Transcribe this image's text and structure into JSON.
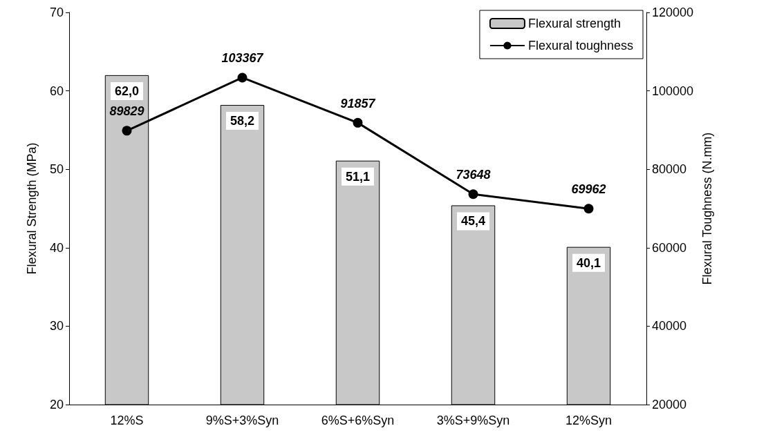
{
  "chart_data": {
    "type": "bar",
    "ylabel": "Flexural Strength (MPa)",
    "y2label": "Flexural Toughness (N.mm)",
    "categories": [
      "12%S",
      "9%S+3%Syn",
      "6%S+6%Syn",
      "3%S+9%Syn",
      "12%Syn"
    ],
    "series": [
      {
        "name": "Flexural strength",
        "color": "#c8c8c8",
        "values": [
          62.0,
          58.2,
          51.1,
          45.4,
          40.1
        ],
        "value_labels": [
          "62,0",
          "58,2",
          "51,1",
          "45,4",
          "40,1"
        ]
      },
      {
        "name": "Flexural toughness",
        "type": "line",
        "axis": "y2",
        "color": "#000000",
        "marker": "circle",
        "values": [
          89829,
          103367,
          91857,
          73648,
          69962
        ],
        "value_labels": [
          "89829",
          "103367",
          "91857",
          "73648",
          "69962"
        ]
      }
    ],
    "ylim": [
      20,
      70
    ],
    "yticks": [
      20,
      30,
      40,
      50,
      60,
      70
    ],
    "y2lim": [
      20000,
      120000
    ],
    "y2ticks": [
      20000,
      40000,
      60000,
      80000,
      100000,
      120000
    ],
    "grid": false,
    "legend": "top right"
  }
}
